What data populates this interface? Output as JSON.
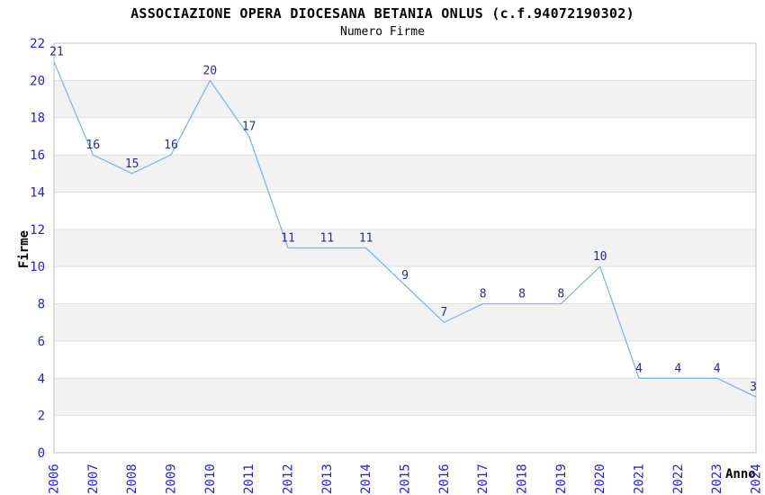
{
  "chart_data": {
    "type": "line",
    "title": "ASSOCIAZIONE OPERA DIOCESANA BETANIA ONLUS (c.f.94072190302)",
    "subtitle": "Numero Firme",
    "xlabel": "Anno",
    "ylabel": "Firme",
    "categories": [
      "2006",
      "2007",
      "2008",
      "2009",
      "2010",
      "2011",
      "2012",
      "2013",
      "2014",
      "2015",
      "2016",
      "2017",
      "2018",
      "2019",
      "2020",
      "2021",
      "2022",
      "2023",
      "2024"
    ],
    "values": [
      21,
      16,
      15,
      16,
      20,
      17,
      11,
      11,
      11,
      9,
      7,
      8,
      8,
      8,
      10,
      4,
      4,
      4,
      3
    ],
    "ylim": [
      0,
      22
    ],
    "yticks": [
      0,
      2,
      4,
      6,
      8,
      10,
      12,
      14,
      16,
      18,
      20,
      22
    ],
    "grid": true,
    "legend": "none",
    "point_labels_visible": true,
    "colors": {
      "line": "#85b5e8",
      "point_label": "#2b2b8c",
      "tick_label": "#2424cc",
      "band": "#f2f2f2",
      "gridline": "#e0e0e0",
      "plot_border": "#c0c0c0",
      "text": "#000000",
      "background": "#ffffff"
    }
  }
}
